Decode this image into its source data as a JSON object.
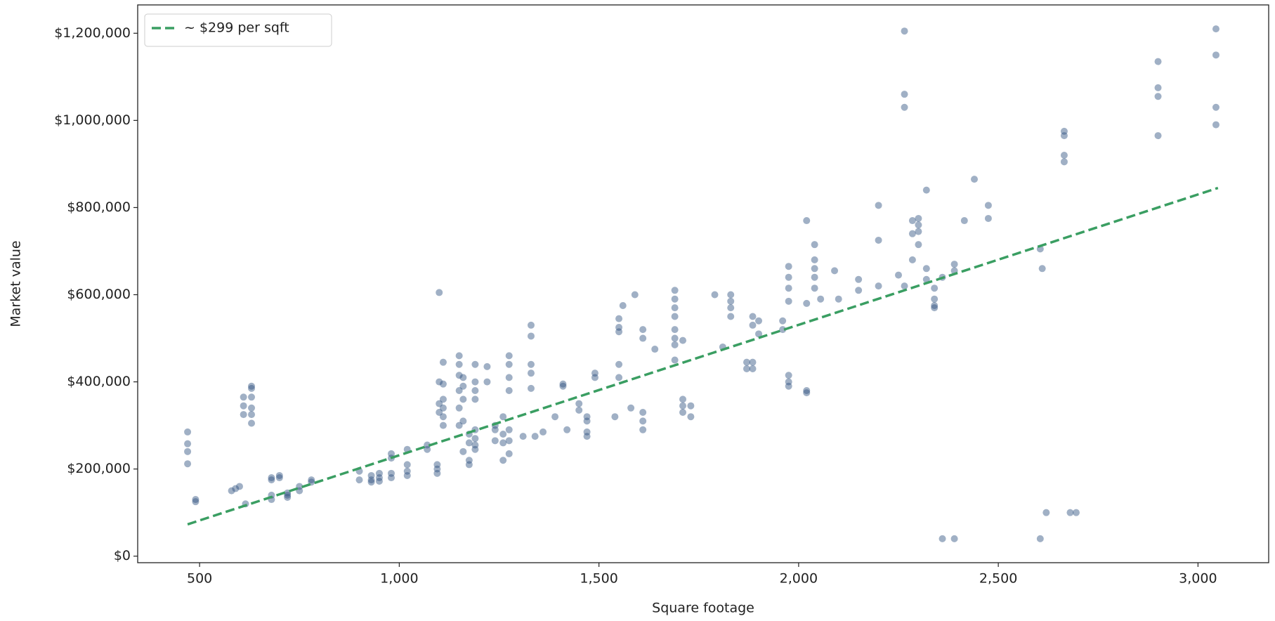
{
  "chart_data": {
    "type": "scatter",
    "xlabel": "Square footage",
    "ylabel": "Market value",
    "xlim": [
      345,
      3177
    ],
    "ylim": [
      -15000,
      1265000
    ],
    "xticks": [
      500,
      {
        "value": 1000,
        "label": "1,000"
      },
      {
        "value": 1500,
        "label": "1,500"
      },
      {
        "value": 2000,
        "label": "2,000"
      },
      {
        "value": 2500,
        "label": "2,500"
      },
      {
        "value": 3000,
        "label": "3,000"
      }
    ],
    "yticks": [
      {
        "value": 0,
        "label": "$0"
      },
      {
        "value": 200000,
        "label": "$200,000"
      },
      {
        "value": 400000,
        "label": "$400,000"
      },
      {
        "value": 600000,
        "label": "$600,000"
      },
      {
        "value": 800000,
        "label": "$800,000"
      },
      {
        "value": 1000000,
        "label": "$1,000,000"
      },
      {
        "value": 1200000,
        "label": "$1,200,000"
      }
    ],
    "legend": "upper left",
    "series": [
      {
        "type": "scatter",
        "color": "#2c4f7e",
        "x": [
          470,
          470,
          470,
          470,
          490,
          490,
          580,
          590,
          600,
          610,
          610,
          610,
          615,
          630,
          630,
          630,
          630,
          630,
          630,
          680,
          680,
          680,
          680,
          700,
          700,
          720,
          720,
          720,
          750,
          750,
          780,
          780,
          900,
          900,
          930,
          930,
          930,
          950,
          950,
          950,
          980,
          980,
          980,
          980,
          1020,
          1020,
          1020,
          1020,
          1070,
          1070,
          1095,
          1095,
          1095,
          1100,
          1100,
          1100,
          1100,
          1110,
          1110,
          1110,
          1110,
          1110,
          1110,
          1150,
          1150,
          1150,
          1150,
          1150,
          1150,
          1160,
          1160,
          1160,
          1160,
          1160,
          1175,
          1175,
          1175,
          1175,
          1190,
          1190,
          1190,
          1190,
          1190,
          1190,
          1190,
          1190,
          1220,
          1220,
          1240,
          1240,
          1240,
          1260,
          1260,
          1260,
          1260,
          1275,
          1275,
          1275,
          1275,
          1275,
          1275,
          1275,
          1310,
          1330,
          1330,
          1330,
          1330,
          1330,
          1340,
          1360,
          1390,
          1410,
          1410,
          1420,
          1450,
          1450,
          1470,
          1470,
          1470,
          1470,
          1490,
          1490,
          1540,
          1550,
          1550,
          1550,
          1550,
          1550,
          1560,
          1580,
          1590,
          1610,
          1610,
          1610,
          1610,
          1610,
          1640,
          1690,
          1690,
          1690,
          1690,
          1690,
          1690,
          1690,
          1690,
          1710,
          1710,
          1710,
          1710,
          1730,
          1730,
          1790,
          1810,
          1830,
          1830,
          1830,
          1830,
          1870,
          1870,
          1885,
          1885,
          1885,
          1885,
          1900,
          1900,
          1960,
          1960,
          1975,
          1975,
          1975,
          1975,
          1975,
          1975,
          1975,
          2020,
          2020,
          2020,
          2020,
          2040,
          2040,
          2040,
          2040,
          2040,
          2055,
          2090,
          2100,
          2150,
          2150,
          2200,
          2200,
          2200,
          2250,
          2265,
          2265,
          2265,
          2265,
          2285,
          2285,
          2285,
          2300,
          2300,
          2300,
          2300,
          2320,
          2320,
          2320,
          2340,
          2340,
          2340,
          2340,
          2360,
          2360,
          2390,
          2390,
          2390,
          2415,
          2440,
          2475,
          2475,
          2605,
          2605,
          2610,
          2620,
          2665,
          2665,
          2665,
          2665,
          2680,
          2695,
          2900,
          2900,
          2900,
          2900,
          3045,
          3045,
          3045,
          3045
        ],
        "values": [
          285000,
          258000,
          240000,
          212000,
          130000,
          125000,
          150000,
          155000,
          160000,
          365000,
          345000,
          325000,
          120000,
          390000,
          385000,
          365000,
          340000,
          325000,
          305000,
          180000,
          175000,
          140000,
          130000,
          185000,
          180000,
          140000,
          135000,
          145000,
          150000,
          160000,
          175000,
          170000,
          195000,
          175000,
          185000,
          175000,
          170000,
          190000,
          180000,
          172000,
          235000,
          225000,
          190000,
          180000,
          245000,
          210000,
          195000,
          185000,
          255000,
          245000,
          210000,
          200000,
          190000,
          605000,
          400000,
          350000,
          330000,
          445000,
          395000,
          360000,
          340000,
          320000,
          300000,
          460000,
          440000,
          415000,
          380000,
          340000,
          300000,
          410000,
          390000,
          360000,
          310000,
          240000,
          280000,
          260000,
          220000,
          210000,
          440000,
          400000,
          380000,
          360000,
          290000,
          270000,
          255000,
          245000,
          435000,
          400000,
          300000,
          290000,
          265000,
          320000,
          280000,
          260000,
          220000,
          460000,
          440000,
          410000,
          380000,
          290000,
          265000,
          235000,
          275000,
          530000,
          505000,
          440000,
          420000,
          385000,
          275000,
          285000,
          320000,
          395000,
          390000,
          290000,
          350000,
          335000,
          320000,
          310000,
          285000,
          275000,
          420000,
          410000,
          320000,
          545000,
          525000,
          515000,
          440000,
          410000,
          575000,
          340000,
          600000,
          520000,
          500000,
          330000,
          310000,
          290000,
          475000,
          610000,
          590000,
          570000,
          550000,
          520000,
          500000,
          485000,
          450000,
          495000,
          360000,
          345000,
          330000,
          345000,
          320000,
          600000,
          480000,
          600000,
          585000,
          570000,
          550000,
          445000,
          430000,
          550000,
          530000,
          445000,
          430000,
          540000,
          510000,
          540000,
          520000,
          665000,
          640000,
          615000,
          585000,
          415000,
          400000,
          390000,
          770000,
          580000,
          380000,
          375000,
          715000,
          680000,
          660000,
          640000,
          615000,
          590000,
          655000,
          590000,
          635000,
          610000,
          805000,
          725000,
          620000,
          645000,
          1205000,
          1060000,
          1030000,
          620000,
          770000,
          740000,
          680000,
          775000,
          760000,
          745000,
          715000,
          840000,
          660000,
          635000,
          615000,
          590000,
          575000,
          570000,
          640000,
          40000,
          670000,
          655000,
          40000,
          770000,
          865000,
          805000,
          775000,
          40000,
          705000,
          660000,
          100000,
          975000,
          965000,
          920000,
          905000,
          100000,
          100000,
          1135000,
          1075000,
          1055000,
          965000,
          1210000,
          1150000,
          1030000,
          990000
        ]
      },
      {
        "type": "line",
        "name": "~ $299 per sqft",
        "color": "#3a9e62",
        "dashed": true,
        "x": [
          470,
          3050
        ],
        "values": [
          73000,
          845000
        ]
      }
    ]
  }
}
